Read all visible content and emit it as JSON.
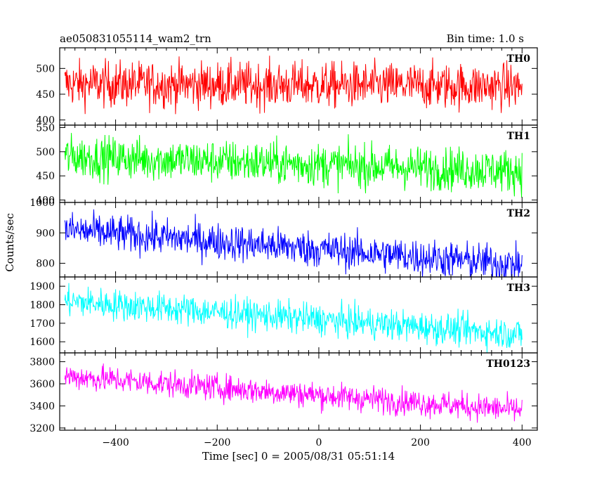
{
  "header": {
    "title": "ae050831055114_wam2_trn",
    "bin_time": "Bin time: 1.0 s"
  },
  "chart_data": {
    "type": "line",
    "xlabel": "Time [sec] 0 = 2005/08/31 05:51:14",
    "ylabel": "Counts/sec",
    "xlim": [
      -510,
      430
    ],
    "x_range_data": [
      -500,
      400
    ],
    "x_ticks": [
      -400,
      -200,
      0,
      200,
      400
    ],
    "grid": false,
    "panels": [
      {
        "label": "TH0",
        "color": "#ff0000",
        "ylim": [
          390,
          540
        ],
        "y_ticks": [
          400,
          450,
          500
        ],
        "trend_start": 470,
        "trend_end": 465,
        "noise": 22
      },
      {
        "label": "TH1",
        "color": "#00ff00",
        "ylim": [
          395,
          555
        ],
        "y_ticks": [
          400,
          450,
          500,
          550
        ],
        "trend_start": 490,
        "trend_end": 460,
        "noise": 22
      },
      {
        "label": "TH2",
        "color": "#0000ff",
        "ylim": [
          755,
          1000
        ],
        "y_ticks": [
          800,
          900,
          1000
        ],
        "trend_start": 910,
        "trend_end": 795,
        "noise": 30
      },
      {
        "label": "TH3",
        "color": "#00ffff",
        "ylim": [
          1540,
          1950
        ],
        "y_ticks": [
          1600,
          1700,
          1800,
          1900
        ],
        "trend_start": 1820,
        "trend_end": 1640,
        "noise": 42
      },
      {
        "label": "TH0123",
        "color": "#ff00ff",
        "ylim": [
          3180,
          3880
        ],
        "y_ticks": [
          3200,
          3400,
          3600,
          3800
        ],
        "trend_start": 3670,
        "trend_end": 3360,
        "noise": 60
      }
    ]
  }
}
